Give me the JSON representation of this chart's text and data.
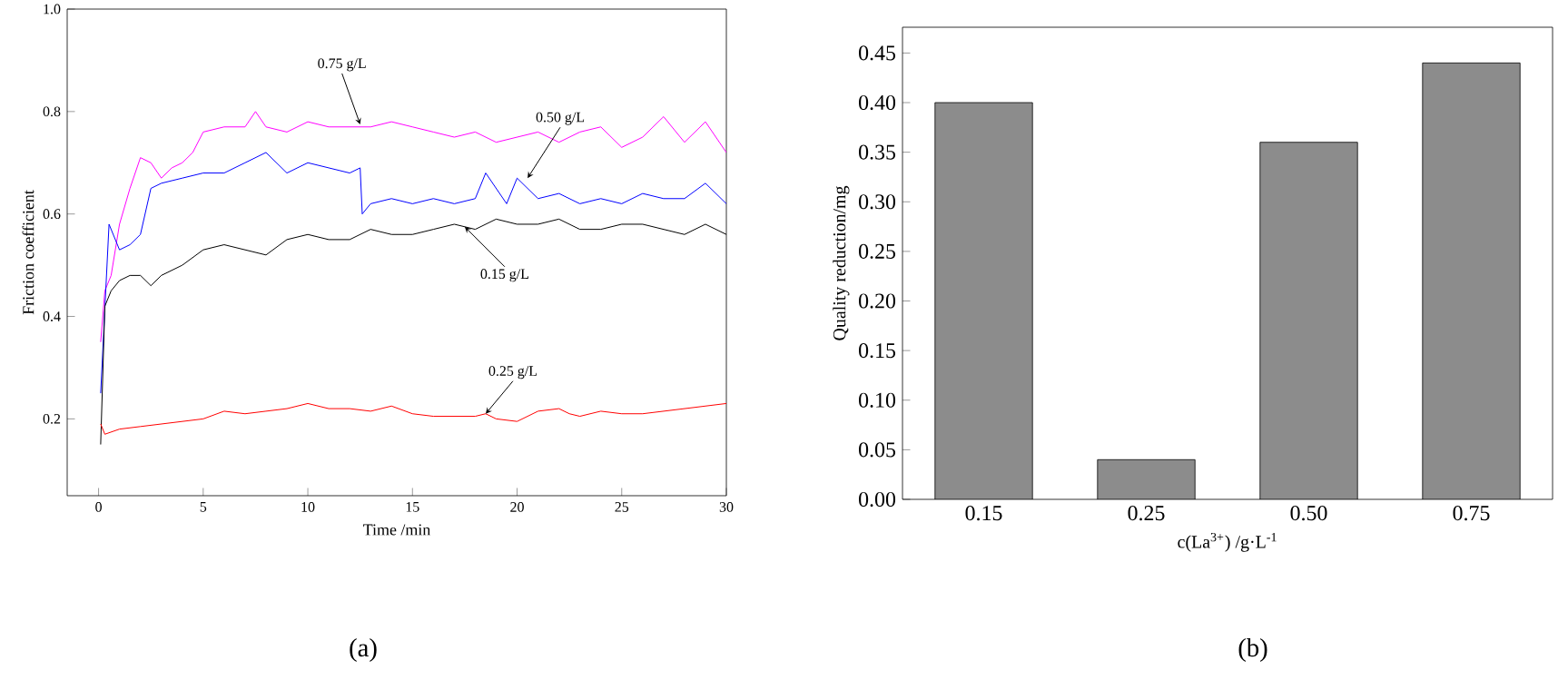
{
  "chart_data": [
    {
      "type": "line",
      "xlabel": "Time /min",
      "ylabel": "Friction coefficient",
      "xlim": [
        -1.5,
        30
      ],
      "ylim": [
        0.05,
        1.0
      ],
      "xticks": [
        0,
        5,
        10,
        15,
        20,
        25,
        30
      ],
      "yticks": [
        0.2,
        0.4,
        0.6,
        {
          "value": 0.8,
          "label": "0.8"
        },
        {
          "value": 1.0,
          "label": "1.0"
        }
      ],
      "series": [
        {
          "color": "#ff00ff",
          "x": [
            0.1,
            0.3,
            0.6,
            1,
            1.5,
            2,
            2.5,
            3,
            3.5,
            4,
            4.5,
            5,
            6,
            7,
            7.5,
            8,
            9,
            10,
            11,
            12,
            13,
            14,
            15,
            16,
            17,
            18,
            19,
            20,
            21,
            22,
            23,
            24,
            25,
            26,
            27,
            28,
            29,
            30
          ],
          "values": [
            0.35,
            0.45,
            0.48,
            0.58,
            0.65,
            0.71,
            0.7,
            0.67,
            0.69,
            0.7,
            0.72,
            0.76,
            0.77,
            0.77,
            0.8,
            0.77,
            0.76,
            0.78,
            0.77,
            0.77,
            0.77,
            0.78,
            0.77,
            0.76,
            0.75,
            0.76,
            0.74,
            0.75,
            0.76,
            0.74,
            0.76,
            0.77,
            0.73,
            0.75,
            0.79,
            0.74,
            0.78,
            0.72
          ]
        },
        {
          "color": "#0000ff",
          "x": [
            0.1,
            0.5,
            1,
            1.5,
            2,
            2.5,
            3,
            4,
            5,
            6,
            7,
            8,
            9,
            10,
            11,
            12,
            12.5,
            12.6,
            13,
            14,
            15,
            16,
            17,
            18,
            18.5,
            19.5,
            20,
            21,
            22,
            23,
            24,
            25,
            26,
            27,
            28,
            29,
            30
          ],
          "values": [
            0.25,
            0.58,
            0.53,
            0.54,
            0.56,
            0.65,
            0.66,
            0.67,
            0.68,
            0.68,
            0.7,
            0.72,
            0.68,
            0.7,
            0.69,
            0.68,
            0.69,
            0.6,
            0.62,
            0.63,
            0.62,
            0.63,
            0.62,
            0.63,
            0.68,
            0.62,
            0.67,
            0.63,
            0.64,
            0.62,
            0.63,
            0.62,
            0.64,
            0.63,
            0.63,
            0.66,
            0.62
          ]
        },
        {
          "color": "#000000",
          "x": [
            0.1,
            0.3,
            0.6,
            1,
            1.5,
            2,
            2.5,
            3,
            4,
            5,
            6,
            7,
            8,
            9,
            10,
            11,
            12,
            13,
            14,
            15,
            16,
            17,
            18,
            19,
            20,
            21,
            22,
            23,
            24,
            25,
            26,
            27,
            28,
            29,
            30
          ],
          "values": [
            0.15,
            0.42,
            0.45,
            0.47,
            0.48,
            0.48,
            0.46,
            0.48,
            0.5,
            0.53,
            0.54,
            0.53,
            0.52,
            0.55,
            0.56,
            0.55,
            0.55,
            0.57,
            0.56,
            0.56,
            0.57,
            0.58,
            0.57,
            0.59,
            0.58,
            0.58,
            0.59,
            0.57,
            0.57,
            0.58,
            0.58,
            0.57,
            0.56,
            0.58,
            0.56
          ]
        },
        {
          "color": "#ff0000",
          "x": [
            0.1,
            0.3,
            1,
            2,
            3,
            4,
            5,
            6,
            7,
            8,
            9,
            10,
            11,
            12,
            13,
            14,
            15,
            16,
            17,
            18,
            18.5,
            19,
            20,
            21,
            22,
            22.5,
            23,
            24,
            25,
            26,
            27,
            28,
            29,
            30
          ],
          "values": [
            0.19,
            0.17,
            0.18,
            0.185,
            0.19,
            0.195,
            0.2,
            0.215,
            0.21,
            0.215,
            0.22,
            0.23,
            0.22,
            0.22,
            0.215,
            0.225,
            0.21,
            0.205,
            0.205,
            0.205,
            0.21,
            0.2,
            0.195,
            0.215,
            0.22,
            0.21,
            0.205,
            0.215,
            0.21,
            0.21,
            0.215,
            0.22,
            0.225,
            0.23
          ]
        }
      ],
      "annotations": [
        {
          "text": "0.75 g/L",
          "x": 12.5,
          "y": 0.775
        },
        {
          "text": "0.50 g/L",
          "x": 20.5,
          "y": 0.67
        },
        {
          "text": "0.15 g/L",
          "x": 17.5,
          "y": 0.575
        },
        {
          "text": "0.25 g/L",
          "x": 18.5,
          "y": 0.21
        },
        "(a)"
      ]
    },
    {
      "type": "bar",
      "xlabel": "c(La$^{3+}$) /g·L$^{-1}$",
      "ylabel": "Quality reduction/mg",
      "categories": [
        "0.15",
        "0.25",
        "0.50",
        "0.75"
      ],
      "values": [
        0.4,
        0.04,
        0.36,
        0.44
      ],
      "color": "#8c8c8c",
      "ylim": [
        0,
        0.476
      ],
      "yticks": [
        {
          "value": 0,
          "label": "0.00"
        },
        0.05,
        {
          "value": 0.1,
          "label": "0.10"
        },
        0.15,
        {
          "value": 0.2,
          "label": "0.20"
        },
        0.25,
        {
          "value": 0.3,
          "label": "0.30"
        },
        0.35,
        {
          "value": 0.4,
          "label": "0.40"
        },
        0.45
      ],
      "annotations": [
        "(b)"
      ]
    }
  ]
}
